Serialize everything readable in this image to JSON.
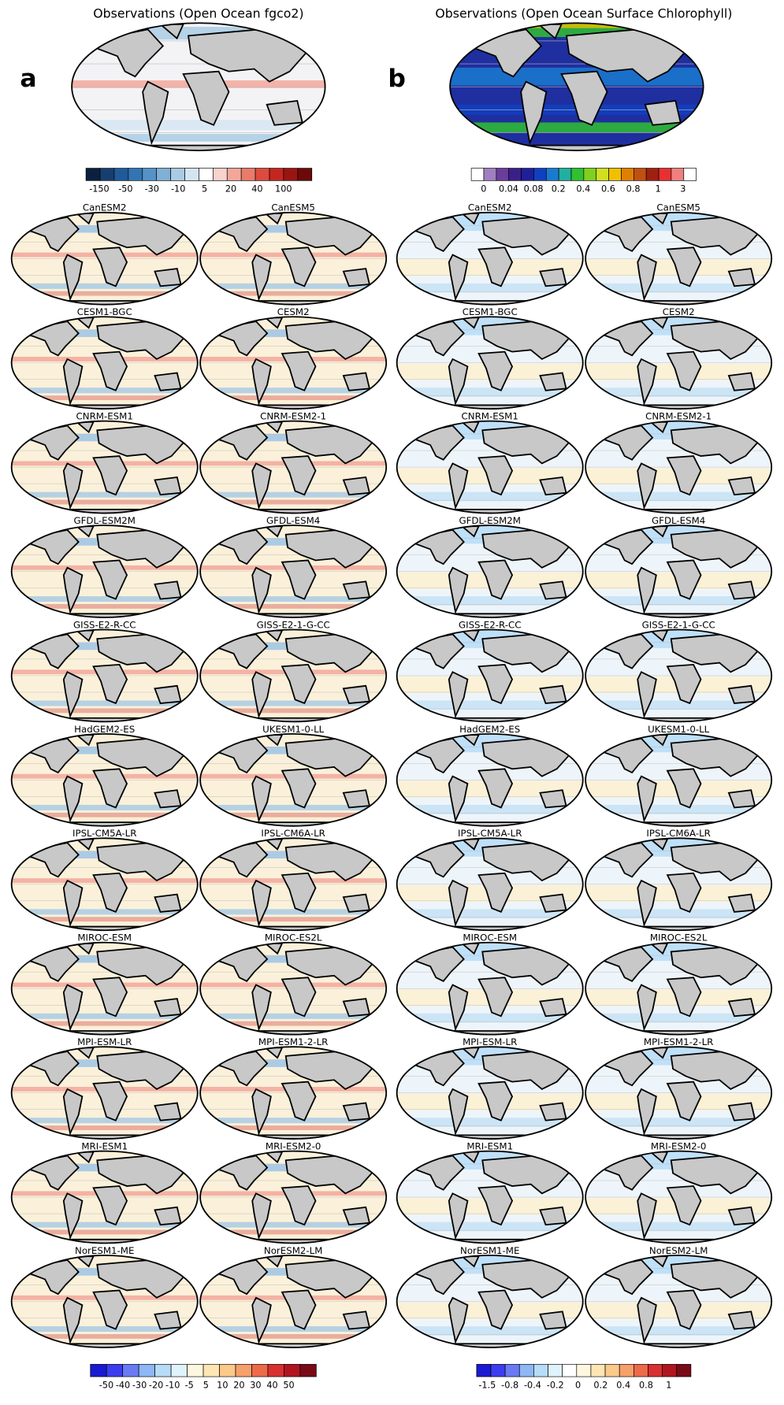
{
  "panels": [
    {
      "letter": "a",
      "title": "Observations (Open Ocean fgco2)",
      "colorbar": {
        "colors": [
          "#0b2040",
          "#163e6e",
          "#1f5a99",
          "#3275b3",
          "#5592c6",
          "#7fb0d6",
          "#a9cbe4",
          "#d3e5f1",
          "#ffffff",
          "#f8d2cb",
          "#f2a79a",
          "#e97b6a",
          "#dc4b3e",
          "#c4261f",
          "#9a1512",
          "#6b0a08"
        ],
        "labels": [
          "-150",
          "-50",
          "-30",
          "-10",
          "5",
          "20",
          "40",
          "100"
        ]
      },
      "models": [
        "CanESM2",
        "CanESM5",
        "CESM1-BGC",
        "CESM2",
        "CNRM-ESM1",
        "CNRM-ESM2-1",
        "GFDL-ESM2M",
        "GFDL-ESM4",
        "GISS-E2-R-CC",
        "GISS-E2-1-G-CC",
        "HadGEM2-ES",
        "UKESM1-0-LL",
        "IPSL-CM5A-LR",
        "IPSL-CM6A-LR",
        "MIROC-ESM",
        "MIROC-ES2L",
        "MPI-ESM-LR",
        "MPI-ESM1-2-LR",
        "MRI-ESM1",
        "MRI-ESM2-0",
        "NorESM1-ME",
        "NorESM2-LM"
      ],
      "bottom_colorbar": {
        "colors": [
          "#1a1ad0",
          "#3d3df0",
          "#6a7af5",
          "#8fb6f5",
          "#b6dcf8",
          "#dff3fb",
          "#fdf7df",
          "#fde6b3",
          "#fbc98a",
          "#f6a06a",
          "#ec6a4a",
          "#d83030",
          "#b01520",
          "#7a0a18"
        ],
        "labels": [
          "-50",
          "-40",
          "-30",
          "-20",
          "-10",
          "-5",
          "5",
          "10",
          "20",
          "30",
          "40",
          "50"
        ]
      }
    },
    {
      "letter": "b",
      "title": "Observations (Open Ocean Surface Chlorophyll)",
      "colorbar": {
        "colors": [
          "#ffffff",
          "#a080c0",
          "#6a3d9a",
          "#3a1f8a",
          "#1f1f9a",
          "#1040c0",
          "#1a7ad0",
          "#20b0a0",
          "#30c030",
          "#80d020",
          "#d0e020",
          "#f0c000",
          "#e08000",
          "#c05010",
          "#a02010",
          "#e83030",
          "#f08080",
          "#ffffff"
        ],
        "labels": [
          "0",
          "0.04",
          "0.08",
          "0.2",
          "0.4",
          "0.6",
          "0.8",
          "1",
          "3"
        ]
      },
      "models": [
        "CanESM2",
        "CanESM5",
        "CESM1-BGC",
        "CESM2",
        "CNRM-ESM1",
        "CNRM-ESM2-1",
        "GFDL-ESM2M",
        "GFDL-ESM4",
        "GISS-E2-R-CC",
        "GISS-E2-1-G-CC",
        "HadGEM2-ES",
        "UKESM1-0-LL",
        "IPSL-CM5A-LR",
        "IPSL-CM6A-LR",
        "MIROC-ESM",
        "MIROC-ES2L",
        "MPI-ESM-LR",
        "MPI-ESM1-2-LR",
        "MRI-ESM1",
        "MRI-ESM2-0",
        "NorESM1-ME",
        "NorESM2-LM"
      ],
      "bottom_colorbar": {
        "colors": [
          "#1a1ad0",
          "#3d3df0",
          "#6a7af5",
          "#8fb6f5",
          "#b6dcf8",
          "#dff3fb",
          "#ffffff",
          "#fdf7df",
          "#fde6b3",
          "#fbc98a",
          "#f6a06a",
          "#ec6a4a",
          "#d83030",
          "#b01520",
          "#7a0a18"
        ],
        "labels": [
          "-1.5",
          "-0.8",
          "-0.4",
          "-0.2",
          "0",
          "0.2",
          "0.4",
          "0.8",
          "1"
        ]
      }
    }
  ]
}
